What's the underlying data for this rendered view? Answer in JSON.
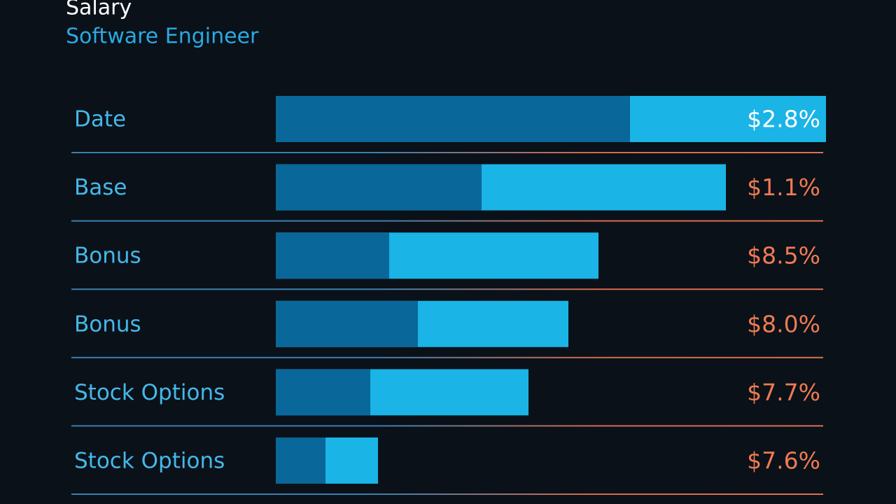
{
  "header": {
    "title": "Salary",
    "subtitle": "Software Engineer"
  },
  "rows": [
    {
      "label": "Date",
      "value": "$2.8%"
    },
    {
      "label": "Base",
      "value": "$1.1%"
    },
    {
      "label": "Bonus",
      "value": "$8.5%"
    },
    {
      "label": "Bonus",
      "value": "$8.0%"
    },
    {
      "label": "Stock Options",
      "value": "$7.7%"
    },
    {
      "label": "Stock Options",
      "value": "$7.6%"
    }
  ]
}
